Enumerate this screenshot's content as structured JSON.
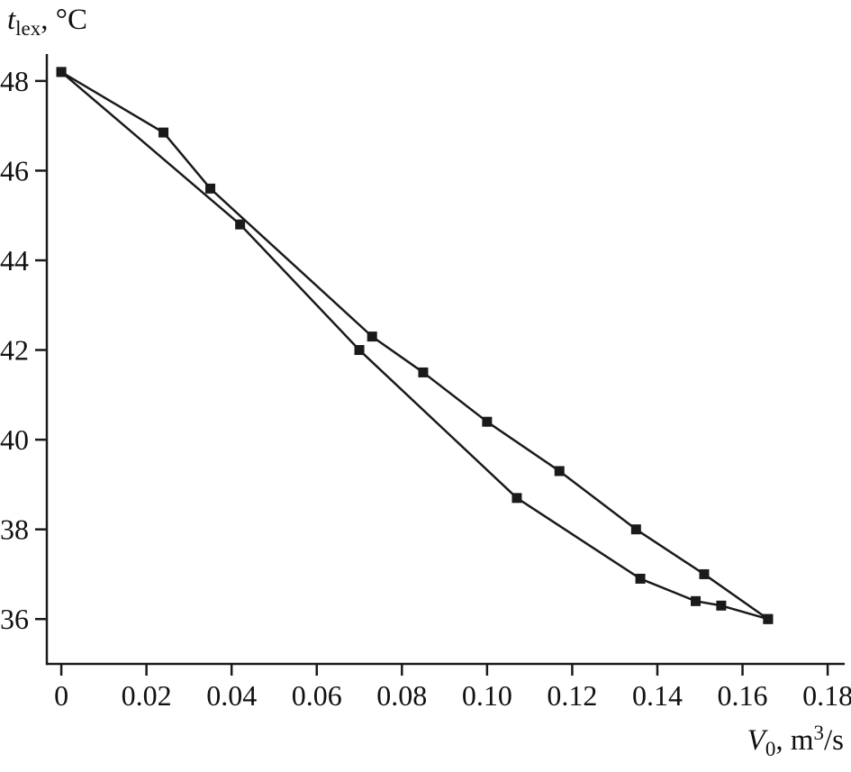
{
  "page": {
    "background": "#ffffff"
  },
  "labels": {
    "y_axis_title": {
      "main": "t",
      "sub": "lex",
      "rest": ", °C"
    },
    "x_axis_title": {
      "main": "V",
      "sub": "0",
      "mid": ", m",
      "sup": "3",
      "end": "/s"
    }
  },
  "chart_data": {
    "type": "line",
    "title": "",
    "xlabel": "V0, m^3/s",
    "ylabel": "t_lex, °C",
    "xlim": [
      -0.0034,
      0.184
    ],
    "ylim": [
      35.0,
      48.6
    ],
    "xticks": [
      0,
      0.02,
      0.04,
      0.06,
      0.08,
      0.1,
      0.12,
      0.14,
      0.16,
      0.18
    ],
    "yticks": [
      36,
      38,
      40,
      42,
      44,
      46,
      48
    ],
    "grid": false,
    "legend_position": "none",
    "marker": "filled-square",
    "marker_size": 11,
    "line_color": "#1a1a1a",
    "axis_color": "#1a1a1a",
    "series": [
      {
        "name": "curve-1-upper",
        "x": [
          0,
          0.024,
          0.035,
          0.073,
          0.085,
          0.1,
          0.117,
          0.135,
          0.151,
          0.166
        ],
        "y": [
          48.2,
          46.85,
          45.6,
          42.3,
          41.5,
          40.4,
          39.3,
          38.0,
          37.0,
          36.0
        ]
      },
      {
        "name": "curve-2-lower",
        "x": [
          0,
          0.042,
          0.07,
          0.107,
          0.136,
          0.149,
          0.155,
          0.166
        ],
        "y": [
          48.2,
          44.8,
          42.0,
          38.7,
          36.9,
          36.4,
          36.3,
          36.0
        ]
      }
    ]
  }
}
